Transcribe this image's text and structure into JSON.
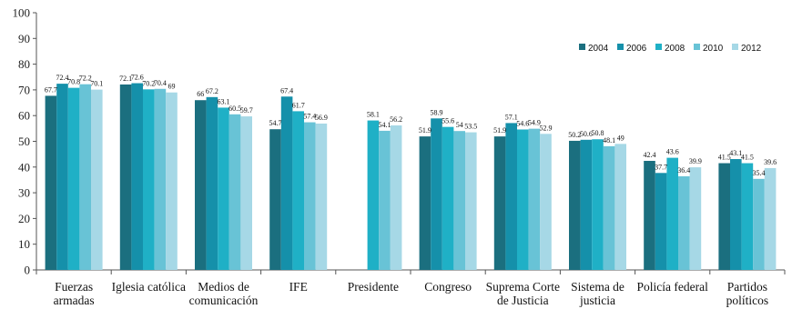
{
  "chart_data": {
    "type": "bar",
    "title": "",
    "xlabel": "",
    "ylabel": "",
    "ylim": [
      0,
      100
    ],
    "yticks": [
      0,
      10,
      20,
      30,
      40,
      50,
      60,
      70,
      80,
      90,
      100
    ],
    "grid": false,
    "legend_position": "top-right",
    "categories": [
      [
        "Fuerzas",
        "armadas"
      ],
      [
        "Iglesia católica"
      ],
      [
        "Medios de",
        "comunicación"
      ],
      [
        "IFE"
      ],
      [
        "Presidente"
      ],
      [
        "Congreso"
      ],
      [
        "Suprema Corte",
        "de Justicia"
      ],
      [
        "Sistema de",
        "justicia"
      ],
      [
        "Policía federal"
      ],
      [
        "Partidos",
        "políticos"
      ]
    ],
    "series": [
      {
        "name": "2004",
        "color": "#1b6f7f",
        "values": [
          67.7,
          72.1,
          66,
          54.7,
          null,
          51.9,
          51.9,
          50.2,
          42.4,
          41.5
        ]
      },
      {
        "name": "2006",
        "color": "#1590aa",
        "values": [
          72.4,
          72.6,
          67.2,
          67.4,
          null,
          58.9,
          57.1,
          50.6,
          37.7,
          43.1
        ]
      },
      {
        "name": "2008",
        "color": "#1fb0c6",
        "values": [
          70.8,
          70.2,
          63.1,
          61.7,
          58.1,
          55.6,
          54.6,
          50.8,
          43.6,
          41.5
        ]
      },
      {
        "name": "2010",
        "color": "#68c3d6",
        "values": [
          72.2,
          70.4,
          60.5,
          57.4,
          54.1,
          54,
          54.9,
          48.1,
          36.4,
          35.4
        ]
      },
      {
        "name": "2012",
        "color": "#a6d8e6",
        "values": [
          70.1,
          69,
          59.7,
          56.9,
          56.2,
          53.5,
          52.9,
          49,
          39.9,
          39.6
        ]
      }
    ]
  }
}
